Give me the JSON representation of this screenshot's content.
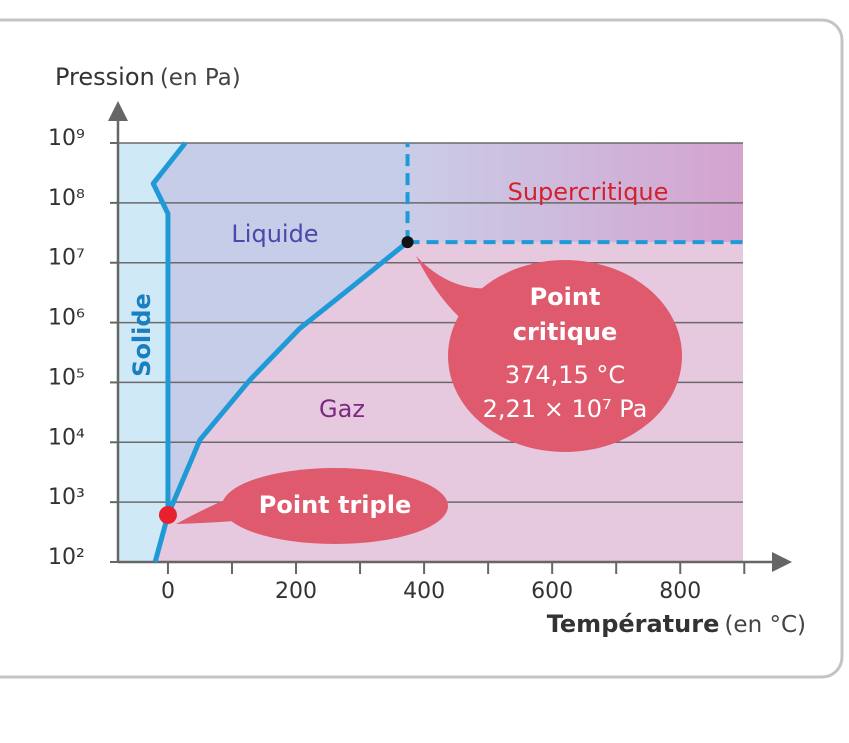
{
  "chart_data": {
    "type": "line",
    "y_label": {
      "main": "Pression",
      "unit": "(en Pa)"
    },
    "x_label": {
      "main": "Température",
      "unit": "(en °C)"
    },
    "xlim": [
      -78,
      898
    ],
    "xticks": [
      0,
      200,
      400,
      600,
      800
    ],
    "xminor_ticks": [
      100,
      300,
      500,
      700,
      900
    ],
    "ylim": [
      100,
      1000000000
    ],
    "ylog": true,
    "grid": true,
    "yticks": [
      {
        "value": 100,
        "label": "10²"
      },
      {
        "value": 1000,
        "label": "10³"
      },
      {
        "value": 10000,
        "label": "10⁴"
      },
      {
        "value": 100000,
        "label": "10⁵"
      },
      {
        "value": 1000000,
        "label": "10⁶"
      },
      {
        "value": 10000000,
        "label": "10⁷"
      },
      {
        "value": 100000000,
        "label": "10⁸"
      },
      {
        "value": 1000000000,
        "label": "10⁹"
      }
    ],
    "series": [
      {
        "color": "#1f9ad6",
        "x": [
          -20,
          0,
          0,
          -23,
          27
        ],
        "values": [
          100,
          611,
          66000000,
          210000000,
          1000000000
        ]
      },
      {
        "color": "#1f9ad6",
        "x": [
          0,
          50,
          128,
          206,
          284,
          374.15
        ],
        "values": [
          611,
          11000,
          110000,
          800000,
          3700000,
          22100000
        ]
      },
      {
        "color": "#1f9ad6",
        "dashed": true,
        "x": [
          374.15,
          374.15
        ],
        "values": [
          22100000,
          1000000000
        ]
      },
      {
        "color": "#1f9ad6",
        "dashed": true,
        "x": [
          374.15,
          898
        ],
        "values": [
          22100000,
          22100000
        ]
      }
    ],
    "points": [
      {
        "x": 0,
        "y": 611,
        "color": "#e8212e"
      },
      {
        "x": 374.15,
        "y": 22100000,
        "color": "#111111"
      }
    ],
    "regions": {
      "solid": "Solide",
      "liquid": "Liquide",
      "gas": "Gaz",
      "supercritical": "Supercritique"
    },
    "annotations": {
      "triple": "Point triple",
      "critical": [
        "Point",
        "critique",
        "374,15 °C",
        "2,21 × 10⁷ Pa"
      ]
    }
  }
}
